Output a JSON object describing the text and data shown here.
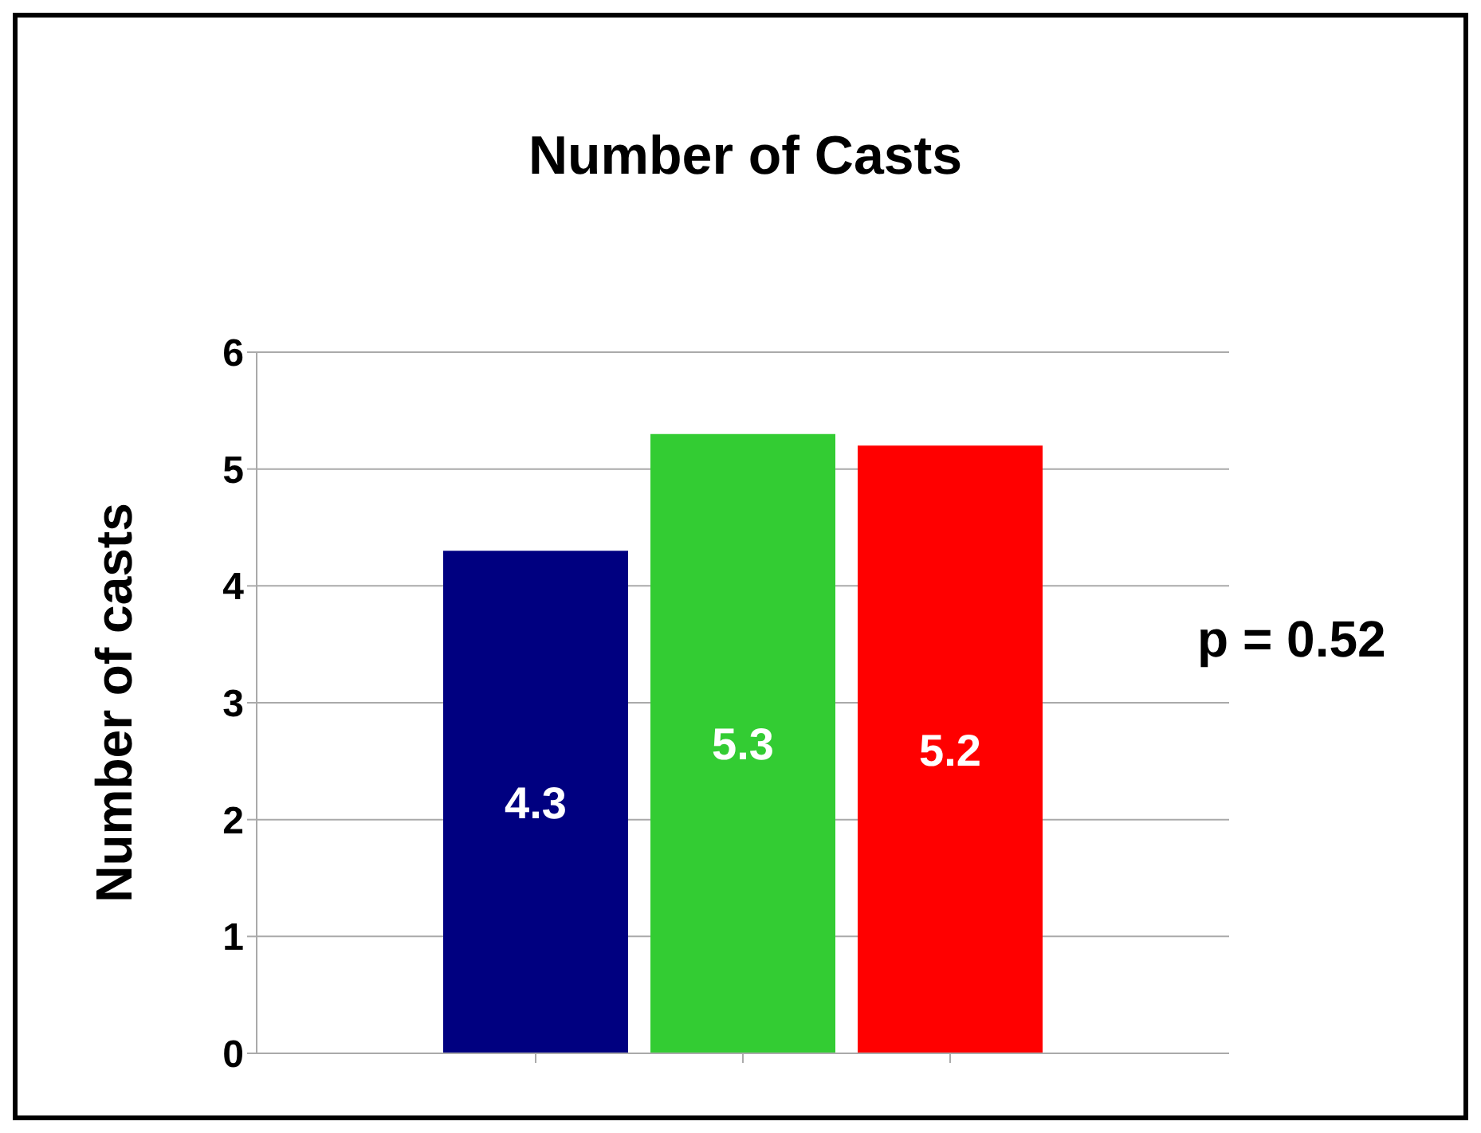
{
  "chart_data": {
    "type": "bar",
    "title": "Number of Casts",
    "ylabel": "Number of casts",
    "categories": [
      null,
      null,
      null
    ],
    "values": [
      4.3,
      5.3,
      5.2
    ],
    "colors": [
      "#000080",
      "#33cc33",
      "#ff0000"
    ],
    "ylim": [
      0,
      6
    ],
    "yticks": [
      0,
      1,
      2,
      3,
      4,
      5,
      6
    ],
    "grid": "y",
    "data_labels": true,
    "annotations": [
      "p = 0.52"
    ]
  }
}
